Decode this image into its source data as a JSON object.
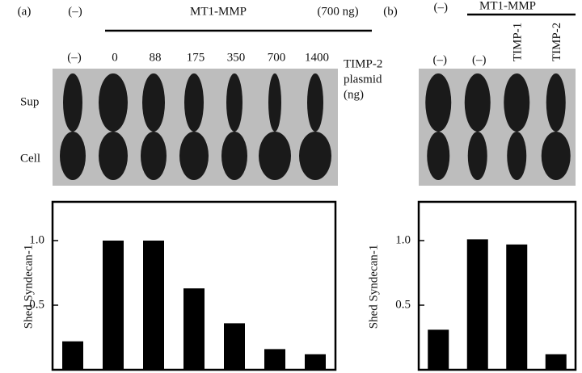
{
  "chart_data": [
    {
      "type": "bar",
      "panel": "(a)",
      "control_label": "(–)",
      "group_label": "MT1-MMP",
      "group_note": "(700 ng)",
      "categories": [
        "(–)",
        "0",
        "88",
        "175",
        "350",
        "700",
        "1400"
      ],
      "category_title": [
        "TIMP-2",
        "plasmid",
        "(ng)"
      ],
      "row_labels": [
        "Sup",
        "Cell"
      ],
      "ylabel": "Shed Syndecan-1",
      "values": [
        0.22,
        1.0,
        1.0,
        0.63,
        0.36,
        0.16,
        0.12
      ],
      "color": "#000000",
      "ylim": [
        0,
        1.3
      ],
      "yticks": [
        0.5,
        {
          "value": 1,
          "label": "1.0"
        }
      ]
    },
    {
      "type": "bar",
      "panel": "(b)",
      "control_label": "(–)",
      "group_label": "MT1-MMP",
      "categories": [
        "(–)",
        "(–)",
        "TIMP-1",
        "TIMP-2"
      ],
      "ylabel": "Shed Syndecan-1",
      "values": [
        0.31,
        1.01,
        0.97,
        0.12
      ],
      "color": "#000000",
      "ylim": [
        0,
        1.3
      ],
      "yticks": [
        0.5,
        {
          "value": 1,
          "label": "1.0"
        }
      ]
    }
  ]
}
